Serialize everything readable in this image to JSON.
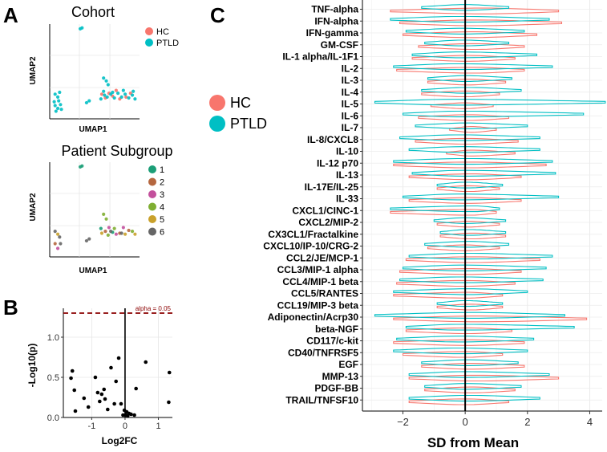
{
  "panels": {
    "A": {
      "label": "A",
      "top": {
        "title": "Cohort",
        "xlabel": "UMAP1",
        "ylabel": "UMAP2",
        "legend": [
          {
            "name": "HC",
            "color": "#F8766D"
          },
          {
            "name": "PTLD",
            "color": "#00BFC4"
          }
        ]
      },
      "bottom": {
        "title": "Patient Subgroup",
        "xlabel": "UMAP1",
        "ylabel": "UMAP2",
        "legend": [
          {
            "name": "1",
            "color": "#1B9E77"
          },
          {
            "name": "2",
            "color": "#B5673F"
          },
          {
            "name": "3",
            "color": "#C3509C"
          },
          {
            "name": "4",
            "color": "#7FAE32"
          },
          {
            "name": "5",
            "color": "#C9A12B"
          },
          {
            "name": "6",
            "color": "#666666"
          }
        ]
      }
    },
    "B": {
      "label": "B",
      "xlabel": "Log2FC",
      "ylabel": "-Log10(p)",
      "annotation": "alpha = 0.05"
    },
    "C": {
      "label": "C",
      "xlabel": "SD from Mean",
      "legend": [
        {
          "name": "HC",
          "color": "#F8766D"
        },
        {
          "name": "PTLD",
          "color": "#00BFC4"
        }
      ]
    }
  },
  "chart_data": [
    {
      "id": "umap_cohort",
      "type": "scatter",
      "title": "Cohort",
      "xlabel": "UMAP1",
      "ylabel": "UMAP2",
      "series": [
        {
          "name": "HC",
          "color": "#F8766D",
          "points": [
            [
              0.62,
              0.22
            ],
            [
              0.7,
              0.24
            ],
            [
              0.78,
              0.21
            ],
            [
              0.85,
              0.23
            ],
            [
              0.66,
              0.27
            ],
            [
              0.74,
              0.3
            ],
            [
              0.9,
              0.27
            ],
            [
              0.58,
              0.26
            ]
          ]
        },
        {
          "name": "PTLD",
          "color": "#00BFC4",
          "points": [
            [
              0.34,
              0.95
            ],
            [
              0.36,
              0.96
            ],
            [
              0.06,
              0.26
            ],
            [
              0.09,
              0.23
            ],
            [
              0.11,
              0.28
            ],
            [
              0.06,
              0.14
            ],
            [
              0.09,
              0.11
            ],
            [
              0.12,
              0.15
            ],
            [
              0.07,
              0.08
            ],
            [
              0.41,
              0.17
            ],
            [
              0.44,
              0.19
            ],
            [
              0.6,
              0.43
            ],
            [
              0.63,
              0.4
            ],
            [
              0.65,
              0.36
            ],
            [
              0.6,
              0.29
            ],
            [
              0.64,
              0.23
            ],
            [
              0.68,
              0.26
            ],
            [
              0.72,
              0.22
            ],
            [
              0.76,
              0.27
            ],
            [
              0.8,
              0.23
            ],
            [
              0.84,
              0.26
            ],
            [
              0.88,
              0.22
            ],
            [
              0.92,
              0.25
            ],
            [
              0.95,
              0.21
            ],
            [
              0.57,
              0.21
            ],
            [
              0.61,
              0.25
            ],
            [
              0.7,
              0.28
            ],
            [
              0.82,
              0.3
            ],
            [
              0.93,
              0.29
            ],
            [
              0.1,
              0.19
            ],
            [
              0.05,
              0.18
            ],
            [
              0.13,
              0.1
            ]
          ]
        }
      ]
    },
    {
      "id": "umap_subgroup",
      "type": "scatter",
      "title": "Patient Subgroup",
      "xlabel": "UMAP1",
      "ylabel": "UMAP2",
      "series": [
        {
          "name": "1",
          "color": "#1B9E77",
          "points": [
            [
              0.34,
              0.95
            ],
            [
              0.36,
              0.96
            ],
            [
              0.57,
              0.3
            ],
            [
              0.7,
              0.26
            ]
          ]
        },
        {
          "name": "2",
          "color": "#B5673F",
          "points": [
            [
              0.62,
              0.27
            ],
            [
              0.78,
              0.25
            ],
            [
              0.06,
              0.14
            ],
            [
              0.88,
              0.28
            ]
          ]
        },
        {
          "name": "3",
          "color": "#C3509C",
          "points": [
            [
              0.66,
              0.31
            ],
            [
              0.09,
              0.09
            ],
            [
              0.82,
              0.31
            ],
            [
              0.74,
              0.24
            ]
          ]
        },
        {
          "name": "4",
          "color": "#7FAE32",
          "points": [
            [
              0.6,
              0.45
            ],
            [
              0.63,
              0.4
            ],
            [
              0.72,
              0.3
            ],
            [
              0.92,
              0.27
            ],
            [
              0.65,
              0.23
            ]
          ]
        },
        {
          "name": "5",
          "color": "#C9A12B",
          "points": [
            [
              0.84,
              0.24
            ],
            [
              0.09,
              0.24
            ],
            [
              0.58,
              0.25
            ],
            [
              0.95,
              0.24
            ]
          ]
        },
        {
          "name": "6",
          "color": "#666666",
          "points": [
            [
              0.06,
              0.27
            ],
            [
              0.11,
              0.21
            ],
            [
              0.41,
              0.17
            ],
            [
              0.44,
              0.19
            ],
            [
              0.68,
              0.27
            ],
            [
              0.8,
              0.25
            ],
            [
              0.12,
              0.14
            ]
          ]
        }
      ]
    },
    {
      "id": "volcano",
      "type": "scatter",
      "xlabel": "Log2FC",
      "ylabel": "-Log10(p)",
      "xlim": [
        -1.85,
        1.42
      ],
      "ylim": [
        0,
        1.36
      ],
      "xticks": [
        -1,
        0,
        1
      ],
      "yticks": [
        0.0,
        0.5,
        1.0
      ],
      "threshold": {
        "y": 1.3,
        "label": "alpha = 0.05",
        "color": "#8B0000"
      },
      "vline": 0,
      "points": [
        [
          -1.58,
          0.58
        ],
        [
          -1.62,
          0.49
        ],
        [
          -1.49,
          0.08
        ],
        [
          -1.52,
          0.34
        ],
        [
          -1.23,
          0.24
        ],
        [
          -1.1,
          0.13
        ],
        [
          -0.89,
          0.5
        ],
        [
          -0.82,
          0.31
        ],
        [
          -0.7,
          0.29
        ],
        [
          -0.76,
          0.2
        ],
        [
          -0.63,
          0.35
        ],
        [
          -0.6,
          0.23
        ],
        [
          -0.52,
          0.1
        ],
        [
          -0.42,
          0.62
        ],
        [
          -0.32,
          0.17
        ],
        [
          -0.27,
          0.45
        ],
        [
          -0.19,
          0.74
        ],
        [
          -0.12,
          0.17
        ],
        [
          -0.06,
          0.03
        ],
        [
          -0.02,
          0.09
        ],
        [
          0.02,
          0.03
        ],
        [
          0.05,
          0.07
        ],
        [
          0.08,
          0.02
        ],
        [
          0.12,
          0.05
        ],
        [
          0.18,
          0.04
        ],
        [
          0.28,
          0.03
        ],
        [
          0.33,
          0.36
        ],
        [
          0.62,
          0.69
        ],
        [
          1.33,
          0.56
        ],
        [
          1.31,
          0.19
        ]
      ]
    },
    {
      "id": "violin_sd",
      "type": "violin",
      "xlabel": "SD from Mean",
      "xlim": [
        -3.3,
        4.4
      ],
      "xticks": [
        -2,
        0,
        2,
        4
      ],
      "vline": 0,
      "series_names": [
        "HC",
        "PTLD"
      ],
      "series_colors": [
        "#F8766D",
        "#00BFC4"
      ],
      "rows": [
        {
          "name": "TNF-alpha",
          "hc": [
            -2.4,
            3.0,
            0.6
          ],
          "ptld": [
            -1.4,
            1.4,
            0.0
          ]
        },
        {
          "name": "IFN-alpha",
          "hc": [
            -2.1,
            3.1,
            0.3
          ],
          "ptld": [
            -2.4,
            2.7,
            -0.2
          ]
        },
        {
          "name": "IFN-gamma",
          "hc": [
            -2.0,
            2.3,
            0.2
          ],
          "ptld": [
            -1.9,
            1.9,
            -0.1
          ]
        },
        {
          "name": "GM-CSF",
          "hc": [
            -1.5,
            1.9,
            0.3
          ],
          "ptld": [
            -1.3,
            1.4,
            -0.1
          ]
        },
        {
          "name": "IL-1 alpha/IL-1F1",
          "hc": [
            -1.7,
            1.6,
            0.1
          ],
          "ptld": [
            -1.7,
            2.3,
            -0.2
          ]
        },
        {
          "name": "IL-2",
          "hc": [
            -2.2,
            1.9,
            0.3
          ],
          "ptld": [
            -2.3,
            2.8,
            -0.3
          ]
        },
        {
          "name": "IL-3",
          "hc": [
            -1.2,
            1.3,
            0.1
          ],
          "ptld": [
            -1.2,
            1.5,
            0.0
          ]
        },
        {
          "name": "IL-4",
          "hc": [
            -1.4,
            1.1,
            0.0
          ],
          "ptld": [
            -1.4,
            1.8,
            0.1
          ]
        },
        {
          "name": "IL-5",
          "hc": [
            -1.1,
            0.9,
            0.0
          ],
          "ptld": [
            -2.9,
            4.5,
            -0.4
          ]
        },
        {
          "name": "IL-6",
          "hc": [
            -1.5,
            1.4,
            0.1
          ],
          "ptld": [
            -2.0,
            3.8,
            -0.2
          ]
        },
        {
          "name": "IL-7",
          "hc": [
            -0.5,
            1.0,
            0.2
          ],
          "ptld": [
            -1.6,
            2.0,
            0.0
          ]
        },
        {
          "name": "IL-8/CXCL8",
          "hc": [
            -1.6,
            1.7,
            0.0
          ],
          "ptld": [
            -2.1,
            2.4,
            -0.2
          ]
        },
        {
          "name": "IL-10",
          "hc": [
            -0.6,
            1.6,
            0.2
          ],
          "ptld": [
            -1.8,
            2.4,
            -0.1
          ]
        },
        {
          "name": "IL-12 p70",
          "hc": [
            -2.3,
            2.6,
            0.1
          ],
          "ptld": [
            -2.3,
            2.8,
            0.0
          ]
        },
        {
          "name": "IL-13",
          "hc": [
            -1.8,
            1.8,
            0.2
          ],
          "ptld": [
            -1.7,
            2.9,
            -0.1
          ]
        },
        {
          "name": "IL-17E/IL-25",
          "hc": [
            -0.9,
            1.1,
            0.1
          ],
          "ptld": [
            -0.9,
            1.2,
            0.0
          ]
        },
        {
          "name": "IL-33",
          "hc": [
            -1.8,
            1.8,
            0.1
          ],
          "ptld": [
            -2.0,
            3.0,
            -0.2
          ]
        },
        {
          "name": "CXCL1/CINC-1",
          "hc": [
            -2.4,
            1.0,
            0.2
          ],
          "ptld": [
            -2.4,
            1.1,
            0.3
          ]
        },
        {
          "name": "CXCL2/MIP-2",
          "hc": [
            -0.9,
            1.1,
            0.1
          ],
          "ptld": [
            -1.0,
            1.3,
            0.0
          ]
        },
        {
          "name": "CX3CL1/Fractalkine",
          "hc": [
            -0.8,
            1.3,
            0.2
          ],
          "ptld": [
            -0.8,
            1.3,
            0.1
          ]
        },
        {
          "name": "CXCL10/IP-10/CRG-2",
          "hc": [
            -1.2,
            1.1,
            0.0
          ],
          "ptld": [
            -1.3,
            1.4,
            0.1
          ]
        },
        {
          "name": "CCL2/JE/MCP-1",
          "hc": [
            -1.9,
            2.4,
            0.2
          ],
          "ptld": [
            -1.8,
            2.8,
            0.0
          ]
        },
        {
          "name": "CCL3/MIP-1 alpha",
          "hc": [
            -2.1,
            1.8,
            0.1
          ],
          "ptld": [
            -2.0,
            2.6,
            -0.1
          ]
        },
        {
          "name": "CCL4/MIP-1 beta",
          "hc": [
            -2.2,
            1.6,
            0.0
          ],
          "ptld": [
            -2.1,
            2.5,
            -0.2
          ]
        },
        {
          "name": "CCL5/RANTES",
          "hc": [
            -2.3,
            1.2,
            0.1
          ],
          "ptld": [
            -2.3,
            2.0,
            0.1
          ]
        },
        {
          "name": "CCL19/MIP-3 beta",
          "hc": [
            -0.9,
            1.2,
            0.2
          ],
          "ptld": [
            -0.9,
            1.2,
            0.0
          ]
        },
        {
          "name": "Adiponectin/Acrp30",
          "hc": [
            -2.3,
            3.9,
            0.4
          ],
          "ptld": [
            -2.9,
            3.2,
            0.2
          ]
        },
        {
          "name": "beta-NGF",
          "hc": [
            -1.9,
            1.5,
            0.1
          ],
          "ptld": [
            -1.9,
            3.5,
            -0.2
          ]
        },
        {
          "name": "CD117/c-kit",
          "hc": [
            -2.3,
            1.9,
            0.1
          ],
          "ptld": [
            -2.2,
            2.2,
            -0.2
          ]
        },
        {
          "name": "CD40/TNFRSF5",
          "hc": [
            -2.0,
            1.2,
            0.0
          ],
          "ptld": [
            -2.3,
            2.0,
            -0.2
          ]
        },
        {
          "name": "EGF",
          "hc": [
            -1.4,
            1.9,
            0.2
          ],
          "ptld": [
            -1.4,
            1.7,
            0.1
          ]
        },
        {
          "name": "MMP-13",
          "hc": [
            -1.8,
            3.0,
            0.3
          ],
          "ptld": [
            -1.8,
            2.7,
            0.0
          ]
        },
        {
          "name": "PDGF-BB",
          "hc": [
            -1.3,
            1.6,
            0.2
          ],
          "ptld": [
            -1.3,
            1.8,
            0.0
          ]
        },
        {
          "name": "TRAIL/TNFSF10",
          "hc": [
            -1.8,
            1.4,
            0.0
          ],
          "ptld": [
            -1.8,
            2.4,
            0.1
          ]
        }
      ]
    }
  ]
}
